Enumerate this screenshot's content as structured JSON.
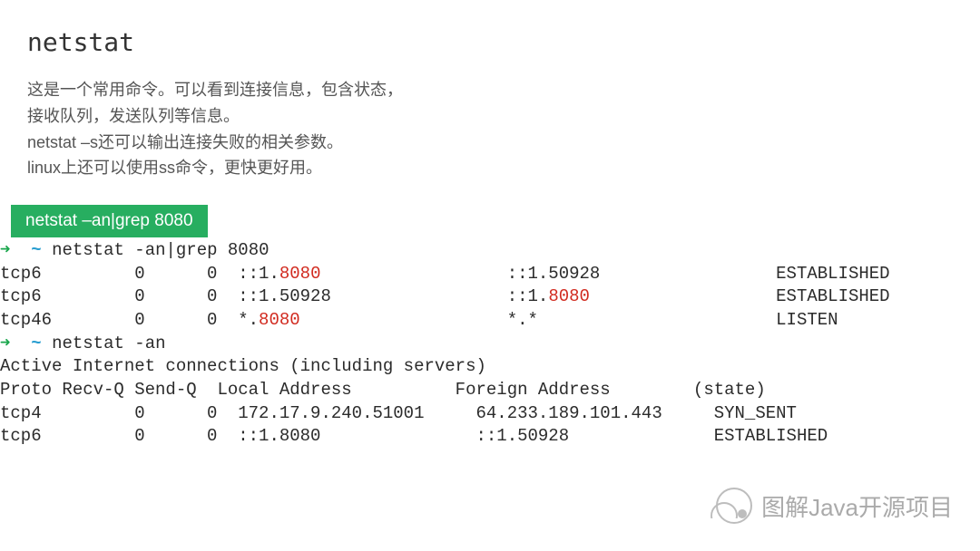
{
  "title": "netstat",
  "description_lines": [
    "这是一个常用命令。可以看到连接信息，包含状态，",
    "接收队列，发送队列等信息。",
    "netstat –s还可以输出连接失败的相关参数。",
    "linux上还可以使用ss命令，更快更好用。"
  ],
  "command_banner": "netstat –an|grep 8080",
  "terminal": {
    "prompt1": {
      "arrow": "➜",
      "tilde": "~",
      "cmd": "netstat -an|grep 8080"
    },
    "rows1": [
      {
        "proto": "tcp6",
        "recvq": "0",
        "sendq": "0",
        "local_pre": "::1.",
        "local_hl": "8080",
        "local_post": "",
        "foreign_pre": "::1.50928",
        "foreign_hl": "",
        "state": "ESTABLISHED"
      },
      {
        "proto": "tcp6",
        "recvq": "0",
        "sendq": "0",
        "local_pre": "::1.50928",
        "local_hl": "",
        "local_post": "",
        "foreign_pre": "::1.",
        "foreign_hl": "8080",
        "state": "ESTABLISHED"
      },
      {
        "proto": "tcp46",
        "recvq": "0",
        "sendq": "0",
        "local_pre": "*.",
        "local_hl": "8080",
        "local_post": "",
        "foreign_pre": "*.*",
        "foreign_hl": "",
        "state": "LISTEN"
      }
    ],
    "prompt2": {
      "arrow": "➜",
      "tilde": "~",
      "cmd": "netstat -an"
    },
    "header2": "Active Internet connections (including servers)",
    "cols2": "Proto Recv-Q Send-Q  Local Address          Foreign Address        (state)",
    "rows2": [
      {
        "proto": "tcp4",
        "recvq": "0",
        "sendq": "0",
        "local": "172.17.9.240.51001",
        "foreign": "64.233.189.101.443",
        "state": "SYN_SENT"
      },
      {
        "proto": "tcp6",
        "recvq": "0",
        "sendq": "0",
        "local": "::1.8080",
        "foreign": "::1.50928",
        "state": "ESTABLISHED"
      }
    ]
  },
  "watermark": "图解Java开源项目",
  "colors": {
    "banner_bg": "#27ae60",
    "arrow": "#1aa64c",
    "tilde": "#279dd0",
    "highlight": "#d12a1f",
    "text": "#2b2b2b",
    "desc": "#555"
  },
  "typography": {
    "title_fontsize": 28,
    "desc_fontsize": 18,
    "banner_fontsize": 19,
    "mono_fontsize": 19,
    "watermark_fontsize": 26,
    "mono_family": "Menlo, Consolas, Courier New, monospace"
  },
  "layout": {
    "cols": {
      "proto_w": 6,
      "recvq_w": 8,
      "sendq_w": 7,
      "local_w": 26,
      "foreign_w": 26,
      "state_w": 12
    }
  }
}
